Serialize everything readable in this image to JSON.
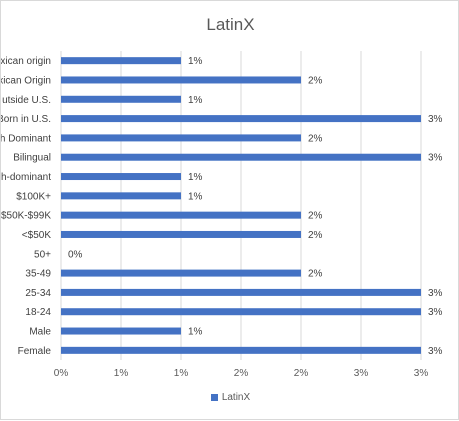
{
  "chart_data": {
    "type": "bar",
    "orientation": "horizontal",
    "title": "LatinX",
    "categories": [
      "exican origin",
      "xican Origin",
      "utside U.S.",
      "Born in U.S.",
      "h Dominant",
      "Bilingual",
      "h-dominant",
      "$100K+",
      "$50K-$99K",
      "<$50K",
      "50+",
      "35-49",
      "25-34",
      "18-24",
      "Male",
      "Female"
    ],
    "series": [
      {
        "name": "LatinX",
        "values": [
          0.01,
          0.02,
          0.01,
          0.03,
          0.02,
          0.03,
          0.01,
          0.01,
          0.02,
          0.02,
          0.0,
          0.02,
          0.03,
          0.03,
          0.01,
          0.03
        ],
        "labels": [
          "1%",
          "2%",
          "1%",
          "3%",
          "2%",
          "3%",
          "1%",
          "1%",
          "2%",
          "2%",
          "0%",
          "2%",
          "3%",
          "3%",
          "1%",
          "3%"
        ]
      }
    ],
    "xlim": [
      0,
      0.03
    ],
    "xticks": [
      0,
      0.005,
      0.01,
      0.015,
      0.02,
      0.025,
      0.03
    ],
    "xtick_labels": [
      "0%",
      "1%",
      "1%",
      "2%",
      "2%",
      "3%",
      "3%"
    ],
    "grid": "vertical",
    "legend": "bottom",
    "colors": {
      "bar": "#4472c4",
      "grid": "#d9d9d9"
    }
  }
}
